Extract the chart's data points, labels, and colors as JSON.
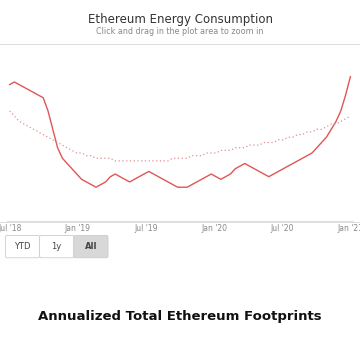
{
  "title": "Ethereum Energy Consumption",
  "subtitle": "Click and drag in the plot area to zoom in",
  "bottom_title": "Annualized Total Ethereum Footprints",
  "background_color": "#ffffff",
  "chart_bg_color": "#ffffff",
  "line_color": "#e05555",
  "dotted_color": "#e09090",
  "x_tick_labels": [
    "Jul '18",
    "Jan '19",
    "Jul '19",
    "Jan '20",
    "Jul '20",
    "Jan '21"
  ],
  "buttons": [
    "YTD",
    "1y",
    "All"
  ],
  "active_button": "All",
  "solid_line": [
    72,
    73,
    72,
    71,
    70,
    69,
    68,
    67,
    62,
    55,
    48,
    44,
    42,
    40,
    38,
    36,
    35,
    34,
    33,
    34,
    35,
    37,
    38,
    37,
    36,
    35,
    36,
    37,
    38,
    39,
    38,
    37,
    36,
    35,
    34,
    33,
    33,
    33,
    34,
    35,
    36,
    37,
    38,
    37,
    36,
    37,
    38,
    40,
    41,
    42,
    41,
    40,
    39,
    38,
    37,
    38,
    39,
    40,
    41,
    42,
    43,
    44,
    45,
    46,
    48,
    50,
    52,
    55,
    58,
    62,
    68,
    75
  ],
  "dotted_line": [
    62,
    60,
    58,
    57,
    56,
    55,
    54,
    53,
    52,
    51,
    50,
    49,
    48,
    47,
    46,
    46,
    45,
    45,
    44,
    44,
    44,
    44,
    43,
    43,
    43,
    43,
    43,
    43,
    43,
    43,
    43,
    43,
    43,
    43,
    44,
    44,
    44,
    44,
    45,
    45,
    45,
    46,
    46,
    46,
    47,
    47,
    47,
    48,
    48,
    48,
    49,
    49,
    49,
    50,
    50,
    50,
    51,
    51,
    52,
    52,
    53,
    53,
    54,
    54,
    55,
    55,
    56,
    57,
    57,
    58,
    59,
    60
  ],
  "title_color": "#333333",
  "subtitle_color": "#888888",
  "tick_color": "#888888",
  "separator_color": "#dddddd",
  "btn_border_color": "#cccccc",
  "btn_active_color": "#d8d8d8",
  "btn_inactive_color": "#ffffff",
  "btn_text_color": "#444444"
}
